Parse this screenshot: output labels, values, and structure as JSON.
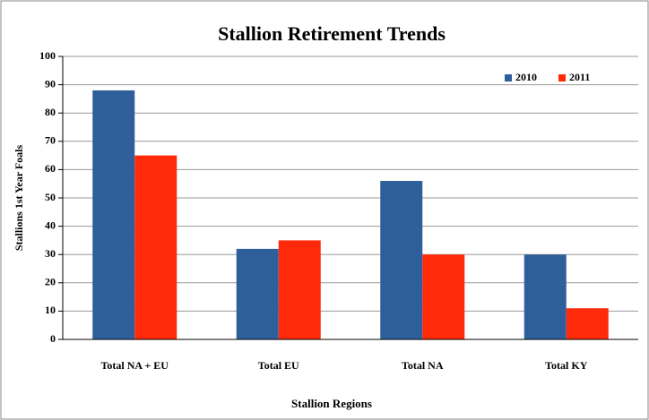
{
  "chart_data": {
    "type": "bar",
    "title": "Stallion Retirement Trends",
    "x_label": "Stallion Regions",
    "y_label": "Stallions 1st Year Foals",
    "categories": [
      "Total NA + EU",
      "Total EU",
      "Total NA",
      "Total KY"
    ],
    "series": [
      {
        "name": "2010",
        "color": "#2f5f9b",
        "values": [
          88,
          32,
          56,
          30
        ]
      },
      {
        "name": "2011",
        "color": "#ff2a0a",
        "values": [
          65,
          35,
          30,
          11
        ]
      }
    ],
    "ylim": [
      0,
      100
    ],
    "yticks": [
      0,
      10,
      20,
      30,
      40,
      50,
      60,
      70,
      80,
      90,
      100
    ],
    "grid": true,
    "legend": "upper right"
  }
}
